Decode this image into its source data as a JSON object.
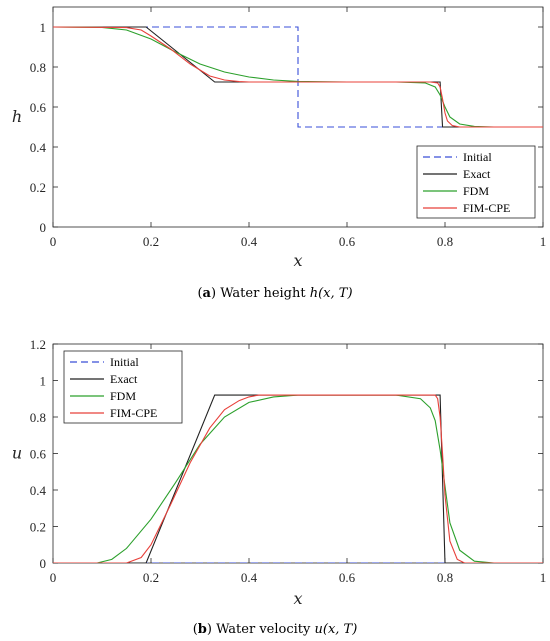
{
  "chart_data": [
    {
      "type": "line",
      "caption": {
        "letter": "a",
        "text": "Water height",
        "math": "h(x, T)"
      },
      "xlabel": "x",
      "ylabel": "h",
      "xlim": [
        0,
        1
      ],
      "ylim": [
        0,
        1.1
      ],
      "xticks": [
        "0",
        "0.2",
        "0.4",
        "0.6",
        "0.8",
        "1"
      ],
      "yticks": [
        "0",
        "0.2",
        "0.4",
        "0.6",
        "0.8",
        "1"
      ],
      "legend_position": "bottom-right",
      "series": [
        {
          "name": "Initial",
          "color": "#3a4fd8",
          "dash": true,
          "x": [
            0,
            0.5,
            0.5,
            1
          ],
          "y": [
            1,
            1,
            0.5,
            0.5
          ]
        },
        {
          "name": "Exact",
          "color": "#222222",
          "x": [
            0,
            0.19,
            0.33,
            0.79,
            0.795,
            1
          ],
          "y": [
            1,
            1,
            0.725,
            0.725,
            0.5,
            0.5
          ]
        },
        {
          "name": "FDM",
          "color": "#2ca02c",
          "x": [
            0,
            0.1,
            0.15,
            0.2,
            0.25,
            0.3,
            0.35,
            0.4,
            0.45,
            0.5,
            0.6,
            0.7,
            0.76,
            0.78,
            0.79,
            0.8,
            0.81,
            0.83,
            0.86,
            0.9,
            1
          ],
          "y": [
            1,
            0.998,
            0.985,
            0.94,
            0.875,
            0.815,
            0.775,
            0.75,
            0.735,
            0.728,
            0.725,
            0.725,
            0.72,
            0.7,
            0.66,
            0.6,
            0.55,
            0.515,
            0.503,
            0.5,
            0.5
          ]
        },
        {
          "name": "FIM-CPE",
          "color": "#e8403a",
          "x": [
            0,
            0.15,
            0.18,
            0.2,
            0.24,
            0.28,
            0.32,
            0.35,
            0.38,
            0.4,
            0.6,
            0.77,
            0.785,
            0.79,
            0.795,
            0.8,
            0.805,
            0.815,
            0.83,
            1
          ],
          "y": [
            1,
            0.997,
            0.985,
            0.955,
            0.89,
            0.815,
            0.755,
            0.735,
            0.727,
            0.725,
            0.725,
            0.725,
            0.72,
            0.7,
            0.64,
            0.57,
            0.53,
            0.507,
            0.5,
            0.5
          ]
        }
      ]
    },
    {
      "type": "line",
      "caption": {
        "letter": "b",
        "text": "Water velocity",
        "math": "u(x, T)"
      },
      "xlabel": "x",
      "ylabel": "u",
      "xlim": [
        0,
        1
      ],
      "ylim": [
        0,
        1.2
      ],
      "xticks": [
        "0",
        "0.2",
        "0.4",
        "0.6",
        "0.8",
        "1"
      ],
      "yticks": [
        "0",
        "0.2",
        "0.4",
        "0.6",
        "0.8",
        "1",
        "1.2"
      ],
      "legend_position": "top-left",
      "series": [
        {
          "name": "Initial",
          "color": "#3a4fd8",
          "dash": true,
          "x": [
            0,
            1
          ],
          "y": [
            0,
            0
          ]
        },
        {
          "name": "Exact",
          "color": "#222222",
          "x": [
            0,
            0.19,
            0.33,
            0.79,
            0.8,
            1
          ],
          "y": [
            0,
            0,
            0.92,
            0.92,
            0,
            0
          ]
        },
        {
          "name": "FDM",
          "color": "#2ca02c",
          "x": [
            0,
            0.09,
            0.12,
            0.15,
            0.2,
            0.25,
            0.3,
            0.35,
            0.4,
            0.45,
            0.5,
            0.7,
            0.75,
            0.77,
            0.78,
            0.79,
            0.8,
            0.81,
            0.83,
            0.86,
            0.9,
            1
          ],
          "y": [
            0,
            0,
            0.02,
            0.08,
            0.24,
            0.44,
            0.65,
            0.8,
            0.88,
            0.91,
            0.92,
            0.92,
            0.9,
            0.85,
            0.78,
            0.62,
            0.42,
            0.22,
            0.07,
            0.01,
            0,
            0
          ]
        },
        {
          "name": "FIM-CPE",
          "color": "#e8403a",
          "x": [
            0,
            0.15,
            0.18,
            0.2,
            0.24,
            0.28,
            0.32,
            0.35,
            0.38,
            0.4,
            0.42,
            0.6,
            0.78,
            0.785,
            0.79,
            0.795,
            0.8,
            0.81,
            0.825,
            0.84,
            1
          ],
          "y": [
            0,
            0,
            0.03,
            0.1,
            0.32,
            0.55,
            0.74,
            0.84,
            0.89,
            0.91,
            0.92,
            0.92,
            0.92,
            0.9,
            0.8,
            0.6,
            0.37,
            0.12,
            0.02,
            0,
            0
          ]
        }
      ]
    }
  ]
}
